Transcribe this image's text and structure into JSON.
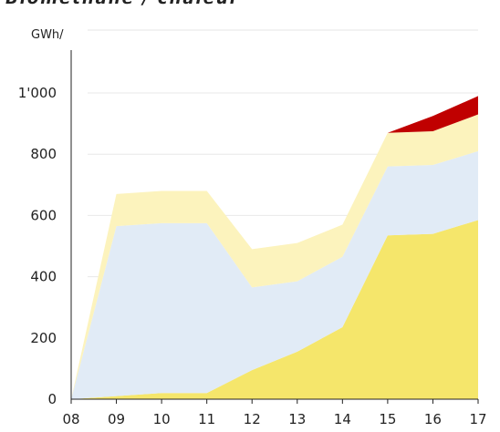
{
  "chart_data": {
    "type": "stacked_area",
    "title": "Biomethane / chaleur",
    "y_label": "GWh/",
    "categories": [
      "08",
      "09",
      "10",
      "11",
      "12",
      "13",
      "14",
      "15",
      "16",
      "17"
    ],
    "series": [
      {
        "color": "#f5e66b",
        "values": [
          0,
          10,
          20,
          20,
          95,
          155,
          235,
          535,
          540,
          585
        ]
      },
      {
        "color": "#e1ebf6",
        "values": [
          0,
          555,
          555,
          555,
          270,
          230,
          230,
          225,
          225,
          225
        ]
      },
      {
        "color": "#fcf3bd",
        "values": [
          0,
          105,
          105,
          105,
          125,
          125,
          105,
          110,
          110,
          120
        ]
      },
      {
        "color": "#c00000",
        "values": [
          null,
          null,
          null,
          null,
          null,
          null,
          null,
          0,
          50,
          60
        ]
      }
    ],
    "ylim": [
      0,
      1140
    ],
    "yticks": [
      0,
      200,
      400,
      600,
      800,
      {
        "value": 1000,
        "label": "1'000"
      }
    ],
    "grid": true
  }
}
